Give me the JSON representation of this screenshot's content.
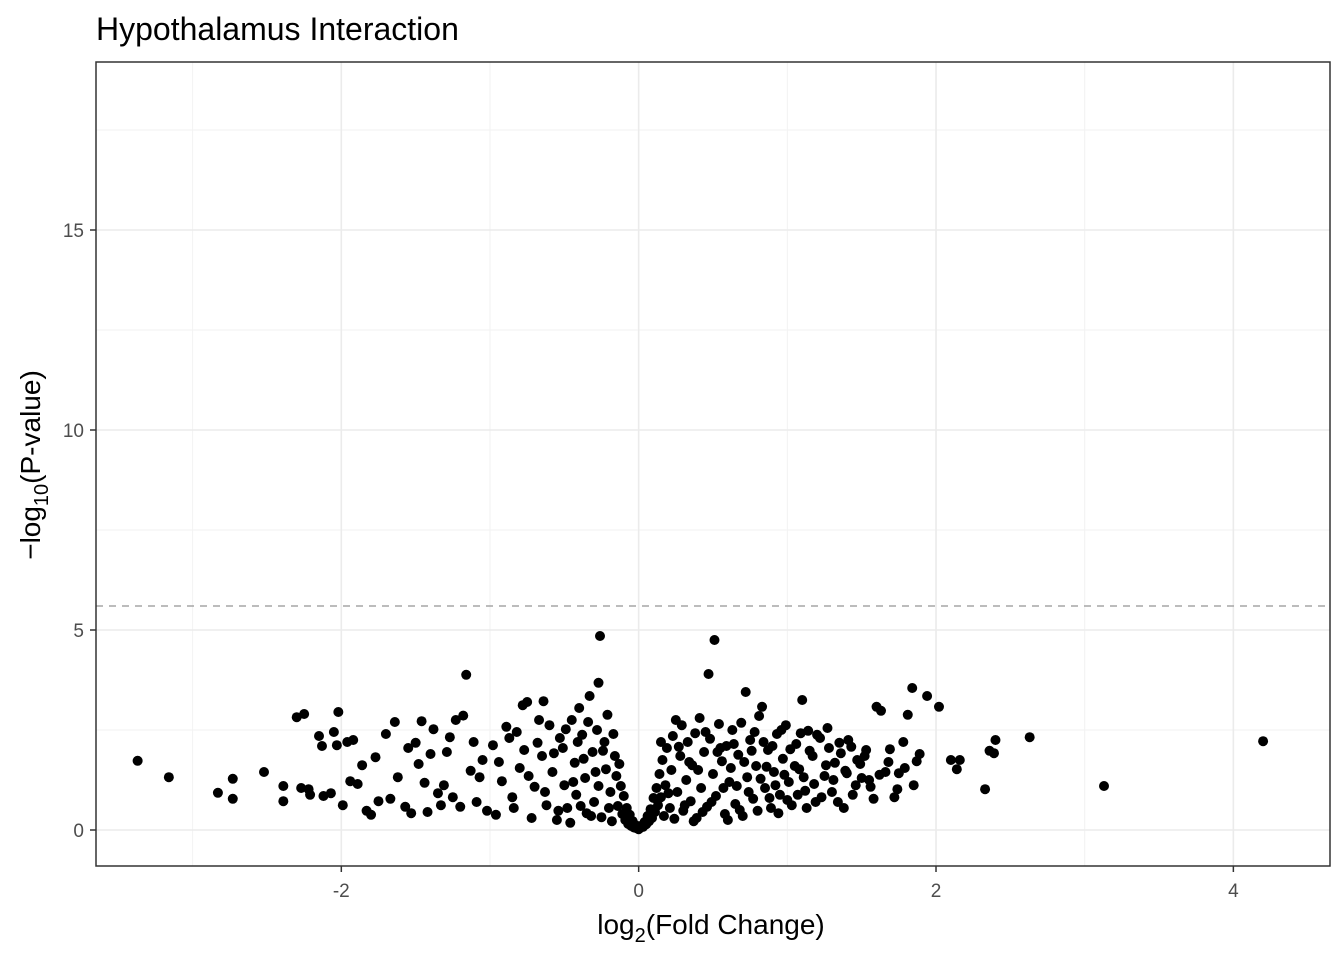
{
  "chart_data": {
    "type": "scatter",
    "title": "Hypothalamus Interaction",
    "xlabel": {
      "prefix": "log",
      "sub": "2",
      "suffix": "(Fold Change)"
    },
    "ylabel": {
      "prefix": "−log",
      "sub": "10",
      "suffix": "(P-value)"
    },
    "xlim": [
      -3.65,
      4.65
    ],
    "ylim": [
      -0.9,
      19.2
    ],
    "x_ticks": [
      -2,
      0,
      2,
      4
    ],
    "y_ticks": [
      0,
      5,
      10,
      15
    ],
    "x_tick_labels": [
      "-2",
      "0",
      "2",
      "4"
    ],
    "y_tick_labels": [
      "0",
      "5",
      "10",
      "15"
    ],
    "grid": true,
    "threshold_line": {
      "y": 5.6,
      "style": "dashed",
      "color": "#a6a6a6"
    },
    "point_color": "#000000",
    "dense_cloud_note_free": true,
    "points": [
      [
        -3.37,
        1.73
      ],
      [
        -3.16,
        1.32
      ],
      [
        -2.83,
        0.93
      ],
      [
        -2.73,
        1.28
      ],
      [
        -2.73,
        0.78
      ],
      [
        -2.52,
        1.45
      ],
      [
        -2.39,
        1.1
      ],
      [
        -2.39,
        0.72
      ],
      [
        -2.3,
        2.82
      ],
      [
        -2.25,
        2.9
      ],
      [
        -2.27,
        1.05
      ],
      [
        -2.21,
        0.88
      ],
      [
        -2.15,
        2.35
      ],
      [
        -2.13,
        2.1
      ],
      [
        -2.12,
        0.85
      ],
      [
        -2.05,
        2.45
      ],
      [
        -2.03,
        2.12
      ],
      [
        -2.02,
        2.95
      ],
      [
        -1.99,
        0.62
      ],
      [
        -1.96,
        2.2
      ],
      [
        -1.92,
        2.25
      ],
      [
        -1.94,
        1.22
      ],
      [
        -1.89,
        1.15
      ],
      [
        -1.86,
        1.62
      ],
      [
        -1.8,
        0.38
      ],
      [
        -1.75,
        0.72
      ],
      [
        -1.7,
        2.4
      ],
      [
        -1.64,
        2.7
      ],
      [
        -1.62,
        1.32
      ],
      [
        -1.57,
        0.58
      ],
      [
        -1.5,
        2.18
      ],
      [
        -1.48,
        1.65
      ],
      [
        -1.46,
        2.72
      ],
      [
        -1.42,
        0.45
      ],
      [
        -1.4,
        1.9
      ],
      [
        -1.35,
        0.92
      ],
      [
        -1.31,
        1.12
      ],
      [
        -1.27,
        2.32
      ],
      [
        -1.23,
        2.75
      ],
      [
        -1.2,
        0.58
      ],
      [
        -1.18,
        2.86
      ],
      [
        -1.16,
        3.88
      ],
      [
        -1.13,
        1.48
      ],
      [
        -1.09,
        0.7
      ],
      [
        -1.05,
        1.75
      ],
      [
        -0.98,
        2.12
      ],
      [
        -0.96,
        0.38
      ],
      [
        -0.92,
        1.22
      ],
      [
        -0.89,
        2.58
      ],
      [
        -0.85,
        0.82
      ],
      [
        -0.82,
        2.45
      ],
      [
        -0.8,
        1.55
      ],
      [
        -0.78,
        3.12
      ],
      [
        -0.75,
        3.2
      ],
      [
        -0.72,
        0.3
      ],
      [
        -0.7,
        1.08
      ],
      [
        -0.68,
        2.18
      ],
      [
        -0.65,
        1.85
      ],
      [
        -0.64,
        3.22
      ],
      [
        -0.62,
        0.62
      ],
      [
        -0.6,
        2.62
      ],
      [
        -0.58,
        1.45
      ],
      [
        -0.55,
        0.25
      ],
      [
        -0.53,
        2.3
      ],
      [
        -0.51,
        2.05
      ],
      [
        -0.5,
        1.12
      ],
      [
        -0.48,
        0.55
      ],
      [
        -0.45,
        2.75
      ],
      [
        -0.43,
        1.68
      ],
      [
        -0.42,
        0.88
      ],
      [
        -0.4,
        3.05
      ],
      [
        -0.38,
        2.38
      ],
      [
        -0.36,
        1.3
      ],
      [
        -0.35,
        0.42
      ],
      [
        -0.33,
        3.35
      ],
      [
        -0.31,
        1.95
      ],
      [
        -0.3,
        0.7
      ],
      [
        -0.28,
        2.5
      ],
      [
        -0.27,
        1.1
      ],
      [
        -0.26,
        4.85
      ],
      [
        -0.27,
        3.68
      ],
      [
        -0.25,
        0.32
      ],
      [
        -0.23,
        2.2
      ],
      [
        -0.22,
        1.52
      ],
      [
        -0.21,
        2.88
      ],
      [
        -0.19,
        0.95
      ],
      [
        -0.18,
        0.22
      ],
      [
        -0.16,
        1.85
      ],
      [
        -0.15,
        1.35
      ],
      [
        -0.14,
        0.6
      ],
      [
        -0.12,
        1.1
      ],
      [
        -0.11,
        0.4
      ],
      [
        -0.1,
        0.85
      ],
      [
        -0.09,
        0.25
      ],
      [
        -0.08,
        0.55
      ],
      [
        -0.07,
        0.15
      ],
      [
        -0.06,
        0.38
      ],
      [
        -0.05,
        0.1
      ],
      [
        -0.04,
        0.22
      ],
      [
        -0.03,
        0.06
      ],
      [
        -0.02,
        0.12
      ],
      [
        -0.01,
        0.04
      ],
      [
        0.0,
        0.02
      ],
      [
        0.01,
        0.05
      ],
      [
        0.02,
        0.11
      ],
      [
        0.03,
        0.08
      ],
      [
        0.04,
        0.2
      ],
      [
        0.05,
        0.14
      ],
      [
        0.06,
        0.35
      ],
      [
        0.07,
        0.22
      ],
      [
        0.08,
        0.52
      ],
      [
        0.09,
        0.3
      ],
      [
        0.1,
        0.8
      ],
      [
        0.11,
        0.45
      ],
      [
        0.12,
        1.05
      ],
      [
        0.13,
        0.62
      ],
      [
        0.14,
        1.4
      ],
      [
        0.15,
        0.82
      ],
      [
        0.16,
        1.75
      ],
      [
        0.17,
        0.35
      ],
      [
        0.18,
        1.12
      ],
      [
        0.19,
        2.05
      ],
      [
        0.21,
        0.55
      ],
      [
        0.22,
        1.5
      ],
      [
        0.23,
        2.35
      ],
      [
        0.24,
        0.28
      ],
      [
        0.25,
        2.75
      ],
      [
        0.26,
        0.95
      ],
      [
        0.28,
        1.85
      ],
      [
        0.29,
        2.62
      ],
      [
        0.3,
        0.48
      ],
      [
        0.32,
        1.25
      ],
      [
        0.33,
        2.2
      ],
      [
        0.35,
        0.72
      ],
      [
        0.36,
        1.62
      ],
      [
        0.38,
        2.42
      ],
      [
        0.39,
        0.3
      ],
      [
        0.41,
        2.8
      ],
      [
        0.42,
        1.05
      ],
      [
        0.44,
        1.95
      ],
      [
        0.46,
        0.58
      ],
      [
        0.47,
        3.9
      ],
      [
        0.48,
        2.28
      ],
      [
        0.5,
        1.4
      ],
      [
        0.51,
        4.75
      ],
      [
        0.52,
        0.85
      ],
      [
        0.54,
        2.65
      ],
      [
        0.56,
        1.72
      ],
      [
        0.58,
        0.4
      ],
      [
        0.59,
        2.1
      ],
      [
        0.61,
        1.2
      ],
      [
        0.63,
        2.5
      ],
      [
        0.65,
        0.65
      ],
      [
        0.67,
        1.88
      ],
      [
        0.69,
        2.68
      ],
      [
        0.7,
        0.35
      ],
      [
        0.72,
        3.45
      ],
      [
        0.73,
        1.32
      ],
      [
        0.75,
        2.25
      ],
      [
        0.77,
        0.78
      ],
      [
        0.79,
        1.6
      ],
      [
        0.81,
        2.85
      ],
      [
        0.83,
        3.08
      ],
      [
        0.85,
        1.05
      ],
      [
        0.87,
        2.0
      ],
      [
        0.89,
        0.55
      ],
      [
        0.91,
        1.45
      ],
      [
        0.93,
        2.4
      ],
      [
        0.95,
        0.88
      ],
      [
        0.97,
        1.78
      ],
      [
        0.99,
        2.62
      ],
      [
        1.01,
        1.2
      ],
      [
        1.03,
        0.62
      ],
      [
        1.06,
        2.15
      ],
      [
        1.08,
        1.52
      ],
      [
        1.1,
        3.25
      ],
      [
        1.12,
        0.98
      ],
      [
        1.14,
        2.48
      ],
      [
        1.17,
        1.85
      ],
      [
        1.19,
        0.7
      ],
      [
        1.22,
        2.3
      ],
      [
        1.25,
        1.35
      ],
      [
        1.27,
        2.55
      ],
      [
        1.3,
        0.95
      ],
      [
        1.32,
        1.68
      ],
      [
        1.35,
        2.18
      ],
      [
        1.38,
        0.55
      ],
      [
        1.4,
        1.42
      ],
      [
        1.43,
        2.08
      ],
      [
        1.46,
        1.12
      ],
      [
        1.49,
        1.65
      ],
      [
        1.52,
        1.85
      ],
      [
        1.55,
        1.25
      ],
      [
        1.58,
        0.78
      ],
      [
        1.6,
        3.08
      ],
      [
        1.63,
        2.98
      ],
      [
        1.66,
        1.45
      ],
      [
        1.69,
        2.02
      ],
      [
        1.72,
        0.82
      ],
      [
        1.75,
        1.42
      ],
      [
        1.78,
        2.2
      ],
      [
        1.81,
        2.88
      ],
      [
        1.84,
        3.55
      ],
      [
        1.87,
        1.72
      ],
      [
        1.89,
        1.9
      ],
      [
        1.94,
        3.35
      ],
      [
        2.02,
        3.08
      ],
      [
        2.1,
        1.75
      ],
      [
        2.14,
        1.52
      ],
      [
        2.16,
        1.75
      ],
      [
        2.33,
        1.02
      ],
      [
        2.36,
        1.98
      ],
      [
        2.4,
        2.25
      ],
      [
        2.39,
        1.92
      ],
      [
        2.63,
        2.32
      ],
      [
        3.13,
        1.1
      ],
      [
        4.2,
        2.22
      ],
      [
        -2.22,
        1.02
      ],
      [
        -2.07,
        0.92
      ],
      [
        -1.83,
        0.48
      ],
      [
        -1.77,
        1.82
      ],
      [
        -1.67,
        0.78
      ],
      [
        -1.55,
        2.05
      ],
      [
        -1.53,
        0.42
      ],
      [
        -1.44,
        1.18
      ],
      [
        -1.38,
        2.52
      ],
      [
        -1.33,
        0.62
      ],
      [
        -1.29,
        1.95
      ],
      [
        -1.25,
        0.82
      ],
      [
        -1.11,
        2.2
      ],
      [
        -1.07,
        1.32
      ],
      [
        -1.02,
        0.48
      ],
      [
        -0.94,
        1.7
      ],
      [
        -0.87,
        2.3
      ],
      [
        -0.84,
        0.55
      ],
      [
        -0.77,
        2.0
      ],
      [
        -0.74,
        1.35
      ],
      [
        -0.67,
        2.75
      ],
      [
        -0.63,
        0.95
      ],
      [
        -0.57,
        1.92
      ],
      [
        -0.54,
        0.48
      ],
      [
        -0.49,
        2.52
      ],
      [
        -0.46,
        0.18
      ],
      [
        -0.44,
        1.2
      ],
      [
        -0.41,
        2.2
      ],
      [
        -0.39,
        0.6
      ],
      [
        -0.37,
        1.78
      ],
      [
        -0.34,
        2.7
      ],
      [
        -0.32,
        0.35
      ],
      [
        -0.29,
        1.45
      ],
      [
        -0.24,
        1.98
      ],
      [
        -0.2,
        0.55
      ],
      [
        -0.17,
        2.4
      ],
      [
        -0.13,
        1.65
      ],
      [
        0.15,
        2.2
      ],
      [
        0.2,
        0.92
      ],
      [
        0.27,
        2.08
      ],
      [
        0.31,
        0.62
      ],
      [
        0.34,
        1.7
      ],
      [
        0.37,
        0.22
      ],
      [
        0.4,
        1.5
      ],
      [
        0.43,
        0.45
      ],
      [
        0.45,
        2.45
      ],
      [
        0.49,
        0.7
      ],
      [
        0.53,
        1.95
      ],
      [
        0.55,
        2.05
      ],
      [
        0.57,
        1.05
      ],
      [
        0.6,
        0.25
      ],
      [
        0.62,
        1.55
      ],
      [
        0.64,
        2.15
      ],
      [
        0.66,
        1.1
      ],
      [
        0.68,
        0.5
      ],
      [
        0.71,
        1.7
      ],
      [
        0.74,
        0.95
      ],
      [
        0.76,
        1.98
      ],
      [
        0.78,
        2.45
      ],
      [
        0.8,
        0.48
      ],
      [
        0.82,
        1.28
      ],
      [
        0.84,
        2.2
      ],
      [
        0.86,
        1.58
      ],
      [
        0.88,
        0.8
      ],
      [
        0.9,
        2.1
      ],
      [
        0.92,
        1.12
      ],
      [
        0.94,
        0.42
      ],
      [
        0.96,
        2.5
      ],
      [
        0.98,
        1.38
      ],
      [
        1.0,
        0.75
      ],
      [
        1.02,
        2.02
      ],
      [
        1.05,
        1.6
      ],
      [
        1.07,
        0.88
      ],
      [
        1.09,
        2.42
      ],
      [
        1.11,
        1.32
      ],
      [
        1.13,
        0.55
      ],
      [
        1.15,
        1.98
      ],
      [
        1.18,
        1.15
      ],
      [
        1.2,
        2.38
      ],
      [
        1.23,
        0.82
      ],
      [
        1.26,
        1.62
      ],
      [
        1.28,
        2.05
      ],
      [
        1.31,
        1.25
      ],
      [
        1.34,
        0.7
      ],
      [
        1.36,
        1.92
      ],
      [
        1.39,
        1.48
      ],
      [
        1.41,
        2.25
      ],
      [
        1.44,
        0.88
      ],
      [
        1.47,
        1.75
      ],
      [
        1.5,
        1.3
      ],
      [
        1.53,
        2.0
      ],
      [
        1.56,
        1.08
      ],
      [
        1.62,
        1.38
      ],
      [
        1.68,
        1.7
      ],
      [
        1.74,
        1.02
      ],
      [
        1.79,
        1.55
      ],
      [
        1.85,
        1.12
      ]
    ]
  }
}
